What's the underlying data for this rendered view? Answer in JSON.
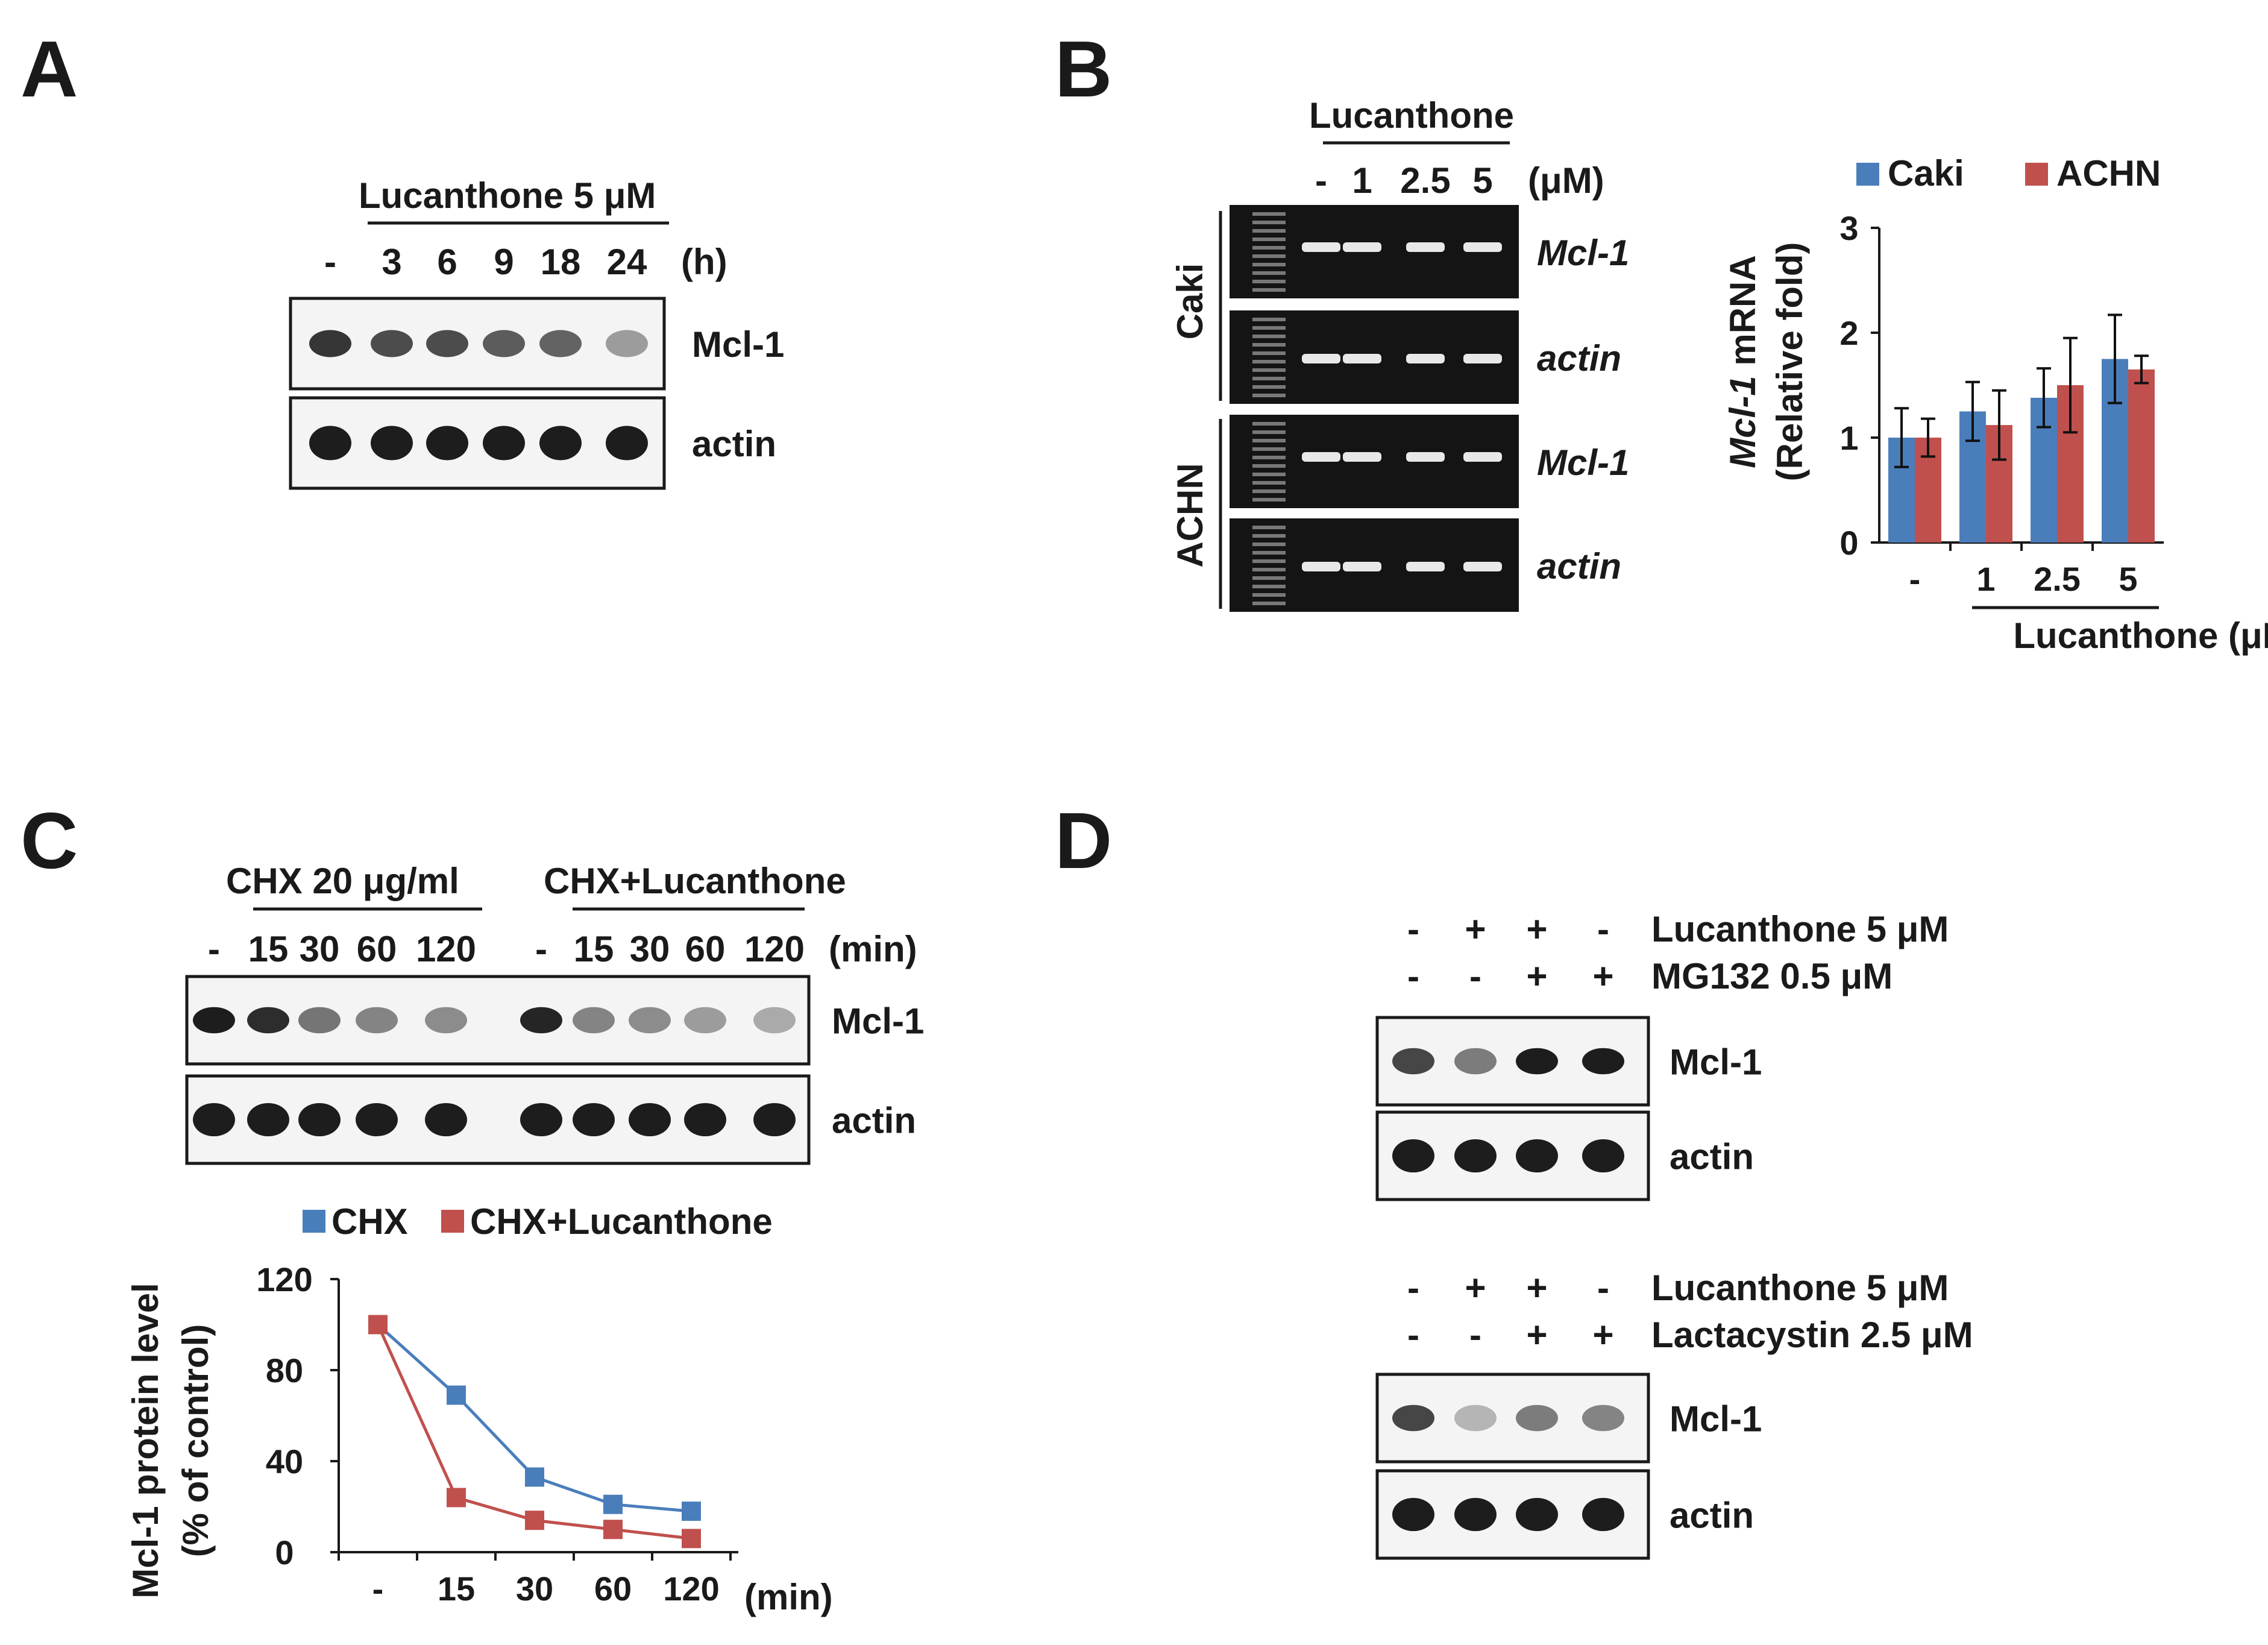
{
  "panels": {
    "A": {
      "label": "A",
      "treatment": "Lucanthone 5 μM",
      "lanes": [
        "-",
        "3",
        "6",
        "9",
        "18",
        "24"
      ],
      "unit": "(h)",
      "bands": [
        {
          "name": "Mcl-1",
          "intensity": [
            0.85,
            0.7,
            0.7,
            0.6,
            0.55,
            0.2
          ]
        },
        {
          "name": "actin",
          "intensity": [
            1,
            1,
            1,
            1,
            1,
            1
          ]
        }
      ]
    },
    "B": {
      "label": "B",
      "treatment": "Lucanthone",
      "lanes": [
        "-",
        "1",
        "2.5",
        "5"
      ],
      "unit": "(μM)",
      "cell_lines": [
        "Caki",
        "ACHN"
      ],
      "gel_rows": [
        {
          "cell": "Caki",
          "name": "Mcl-1"
        },
        {
          "cell": "Caki",
          "name": "actin"
        },
        {
          "cell": "ACHN",
          "name": "Mcl-1"
        },
        {
          "cell": "ACHN",
          "name": "actin"
        }
      ],
      "chart": {
        "legend": [
          "Caki",
          "ACHN"
        ],
        "ylabel_gene": "Mcl-1",
        "ylabel_rest": " mRNA",
        "ylabel_line2": "(Relative fold)",
        "xlabel": "Lucanthone (μM)"
      }
    },
    "C": {
      "label": "C",
      "groups": [
        "CHX 20 μg/ml",
        "CHX+Lucanthone"
      ],
      "lanes": [
        "-",
        "15",
        "30",
        "60",
        "120",
        "-",
        "15",
        "30",
        "60",
        "120"
      ],
      "unit": "(min)",
      "bands": [
        {
          "name": "Mcl-1",
          "intensity": [
            1.0,
            0.9,
            0.45,
            0.35,
            0.3,
            0.95,
            0.35,
            0.3,
            0.2,
            0.1
          ]
        },
        {
          "name": "actin",
          "intensity": [
            1,
            1,
            1,
            1,
            1,
            1,
            1,
            1,
            1,
            1
          ]
        }
      ],
      "chart": {
        "legend": [
          "CHX",
          "CHX+Lucanthone"
        ],
        "ylabel_line1": "Mcl-1  protein level",
        "ylabel_line2": "(% of control)",
        "xunit": "(min)"
      }
    },
    "D": {
      "label": "D",
      "blots": [
        {
          "rows": [
            {
              "label": "Lucanthone 5 μM",
              "signs": [
                "-",
                "+",
                "+",
                "-"
              ]
            },
            {
              "label": "MG132 0.5 μM",
              "signs": [
                "-",
                "-",
                "+",
                "+"
              ]
            }
          ],
          "bands": [
            {
              "name": "Mcl-1",
              "intensity": [
                0.75,
                0.4,
                1.0,
                1.0
              ]
            },
            {
              "name": "actin",
              "intensity": [
                1,
                1,
                1,
                1
              ]
            }
          ]
        },
        {
          "rows": [
            {
              "label": "Lucanthone 5 μM",
              "signs": [
                "-",
                "+",
                "+",
                "-"
              ]
            },
            {
              "label": "Lactacystin 2.5 μM",
              "signs": [
                "-",
                "-",
                "+",
                "+"
              ]
            }
          ],
          "bands": [
            {
              "name": "Mcl-1",
              "intensity": [
                0.75,
                0.05,
                0.4,
                0.35
              ]
            },
            {
              "name": "actin",
              "intensity": [
                1,
                1,
                1,
                1
              ]
            }
          ]
        }
      ]
    }
  },
  "colors": {
    "series1": "#4a7ebb",
    "series2": "#c0504d",
    "text": "#1a1a1a",
    "gel_bg": "#141414"
  },
  "chart_data": [
    {
      "type": "bar",
      "categories": [
        "-",
        "1",
        "2.5",
        "5"
      ],
      "series": [
        {
          "name": "Caki",
          "values": [
            1.0,
            1.25,
            1.38,
            1.75
          ],
          "errors": [
            0.28,
            0.28,
            0.28,
            0.42
          ]
        },
        {
          "name": "ACHN",
          "values": [
            1.0,
            1.12,
            1.5,
            1.65
          ],
          "errors": [
            0.18,
            0.33,
            0.45,
            0.13
          ]
        }
      ],
      "ylim": [
        0,
        3
      ],
      "yticks": [
        "0",
        "1",
        "2",
        "3"
      ],
      "ylabel": "Mcl-1 mRNA (Relative fold)",
      "xlabel": "Lucanthone (μM)",
      "legend_position": "top"
    },
    {
      "type": "line",
      "x": [
        "-",
        "15",
        "30",
        "60",
        "120"
      ],
      "series": [
        {
          "name": "CHX",
          "values": [
            100,
            69,
            33,
            21,
            18
          ]
        },
        {
          "name": "CHX+Lucanthone",
          "values": [
            100,
            24,
            14,
            10,
            6
          ]
        }
      ],
      "ylim": [
        0,
        120
      ],
      "yticks": [
        "0",
        "40",
        "80",
        "120"
      ],
      "ylabel": "Mcl-1  protein level (% of control)",
      "xlabel": "(min)",
      "legend_position": "top"
    }
  ]
}
